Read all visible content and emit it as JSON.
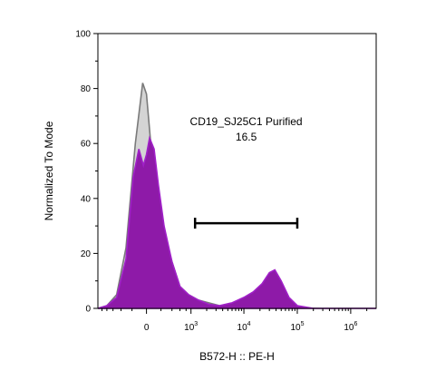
{
  "chart_data": {
    "type": "area",
    "title": "",
    "xlabel": "B572-H :: PE-H",
    "ylabel": "Normalized To Mode",
    "ylim": [
      0,
      100
    ],
    "y_ticks": [
      0,
      20,
      40,
      60,
      80,
      100
    ],
    "x_scale": "biexponential",
    "x_ticks": [
      {
        "value": 0,
        "label": "0"
      },
      {
        "value": 1000,
        "base": "10",
        "exp": "3"
      },
      {
        "value": 10000,
        "base": "10",
        "exp": "4"
      },
      {
        "value": 100000,
        "base": "10",
        "exp": "5"
      },
      {
        "value": 1000000,
        "base": "10",
        "exp": "6"
      }
    ],
    "x_range": [
      -1200,
      3000000
    ],
    "grid": false,
    "series": [
      {
        "role": "control",
        "color": "#7a7a7a",
        "fill": "#d4d4d4",
        "x": [
          -1200,
          -800,
          -500,
          -300,
          -150,
          -50,
          0,
          50,
          150,
          250,
          400,
          600,
          900,
          1400,
          2200,
          3500,
          6000,
          10000,
          20000,
          40000,
          100000,
          300000,
          1000000,
          3000000
        ],
        "y": [
          0,
          1,
          5,
          22,
          60,
          82,
          78,
          62,
          42,
          28,
          17,
          8,
          5,
          3,
          2,
          1,
          0.5,
          0.4,
          0.4,
          0.3,
          0.2,
          0,
          0,
          0
        ]
      },
      {
        "role": "sample",
        "color": "#a020c8",
        "fill": "#8e1aa8",
        "x": [
          -1200,
          -800,
          -500,
          -300,
          -180,
          -100,
          -40,
          0,
          40,
          100,
          160,
          250,
          400,
          600,
          900,
          1400,
          2200,
          3500,
          6000,
          10000,
          15000,
          22000,
          30000,
          38000,
          50000,
          70000,
          100000,
          200000,
          1000000,
          3000000
        ],
        "y": [
          0,
          1,
          4,
          18,
          48,
          58,
          52,
          56,
          62,
          58,
          45,
          30,
          17,
          8,
          5,
          3,
          1.5,
          1,
          2,
          4,
          6,
          9,
          13,
          14,
          10,
          4,
          1,
          0,
          0,
          0
        ]
      }
    ],
    "gate": {
      "name": "CD19_SJ25C1 Purified",
      "value": "16.5",
      "x_start": 1200,
      "x_end": 100000,
      "y_level": 31
    }
  }
}
